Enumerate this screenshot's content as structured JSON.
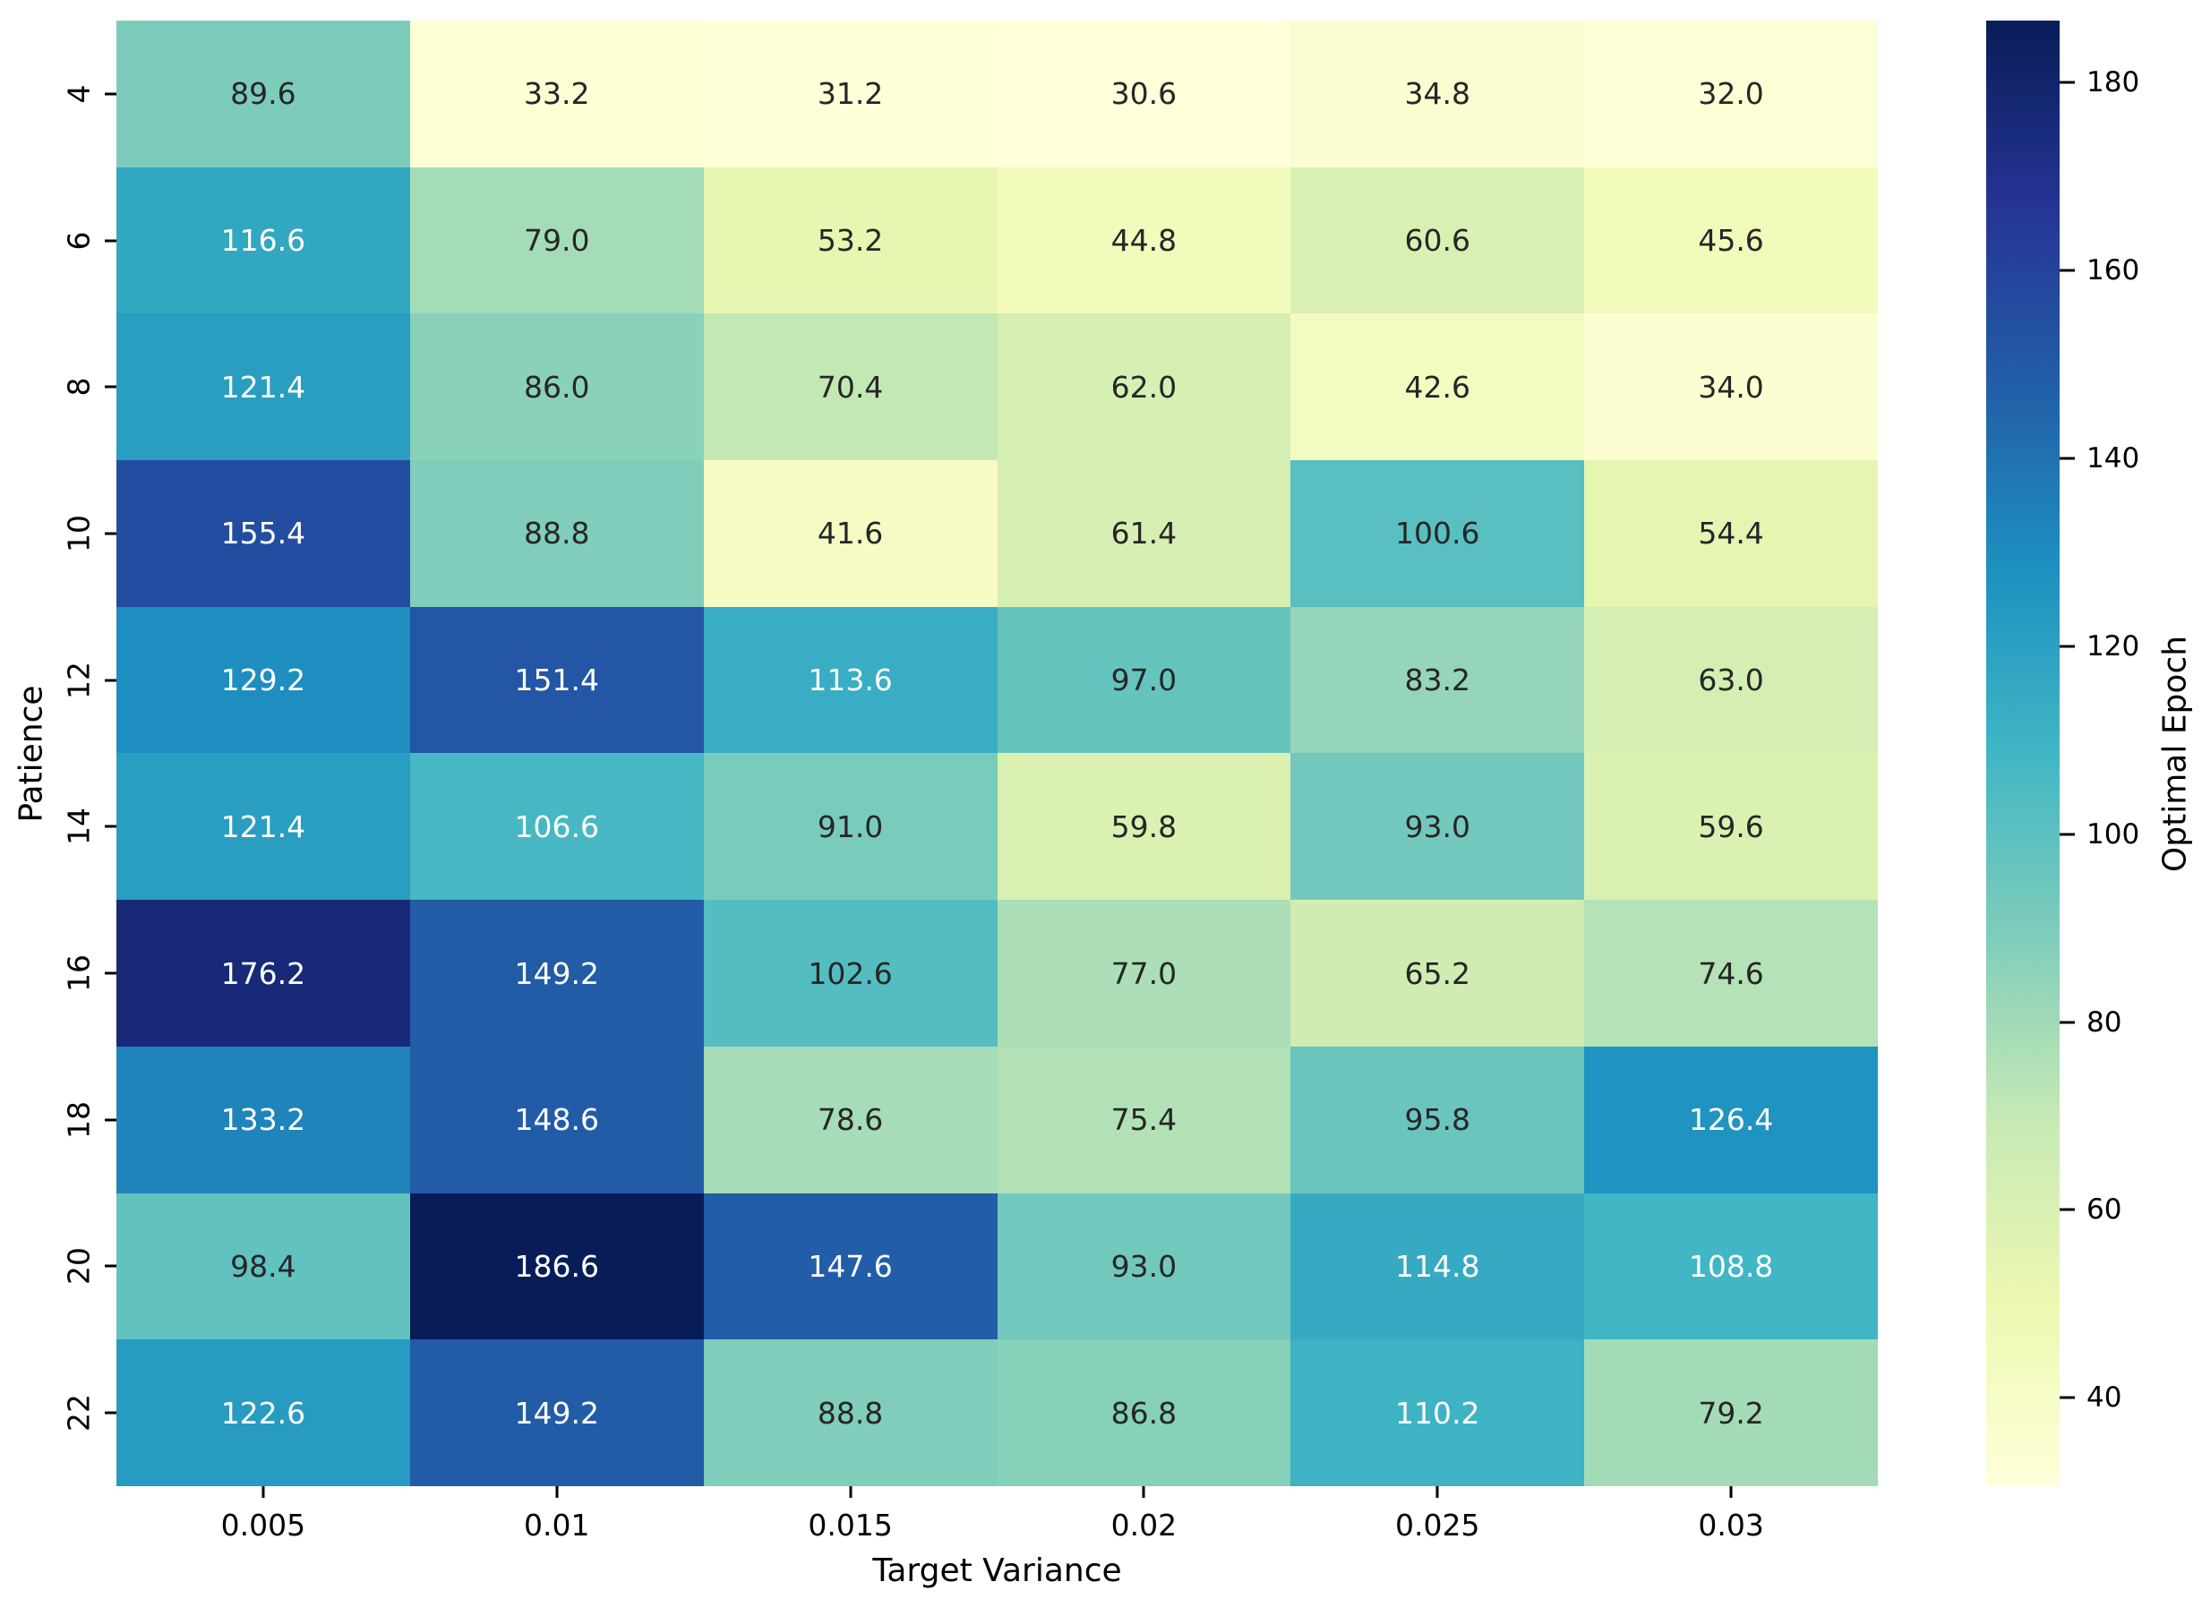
{
  "chart_data": {
    "type": "heatmap",
    "xlabel": "Target Variance",
    "ylabel": "Patience",
    "x_categories": [
      "0.005",
      "0.01",
      "0.015",
      "0.02",
      "0.025",
      "0.03"
    ],
    "y_categories": [
      "4",
      "6",
      "8",
      "10",
      "12",
      "14",
      "16",
      "18",
      "20",
      "22"
    ],
    "values": [
      [
        89.6,
        33.2,
        31.2,
        30.6,
        34.8,
        32.0
      ],
      [
        116.6,
        79.0,
        53.2,
        44.8,
        60.6,
        45.6
      ],
      [
        121.4,
        86.0,
        70.4,
        62.0,
        42.6,
        34.0
      ],
      [
        155.4,
        88.8,
        41.6,
        61.4,
        100.6,
        54.4
      ],
      [
        129.2,
        151.4,
        113.6,
        97.0,
        83.2,
        63.0
      ],
      [
        121.4,
        106.6,
        91.0,
        59.8,
        93.0,
        59.6
      ],
      [
        176.2,
        149.2,
        102.6,
        77.0,
        65.2,
        74.6
      ],
      [
        133.2,
        148.6,
        78.6,
        75.4,
        95.8,
        126.4
      ],
      [
        98.4,
        186.6,
        147.6,
        93.0,
        114.8,
        108.8
      ],
      [
        122.6,
        149.2,
        88.8,
        86.8,
        110.2,
        79.2
      ]
    ],
    "annotation_decimals": 1,
    "colorbar": {
      "label": "Optimal Epoch",
      "ticks": [
        40,
        60,
        80,
        100,
        120,
        140,
        160,
        180
      ],
      "vmin": 30.6,
      "vmax": 186.6
    },
    "colormap": {
      "name": "YlGnBu",
      "stops": [
        "#ffffd9",
        "#edf8b1",
        "#c7e9b4",
        "#7fcdbb",
        "#41b6c4",
        "#1d91c0",
        "#225ea8",
        "#253494",
        "#081d58"
      ]
    },
    "annotation_text_colors": {
      "dark": "#262626",
      "light": "#ffffff"
    },
    "legend_position": "right-colorbar",
    "grid": false
  }
}
